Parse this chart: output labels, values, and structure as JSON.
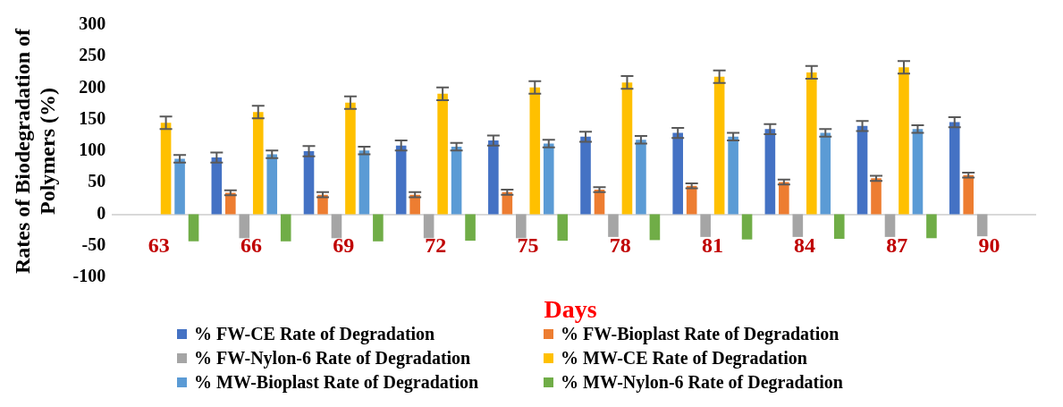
{
  "chart_data": {
    "type": "bar",
    "xlabel": "Days",
    "ylabel": "Rates of Biodegradation of Polymers (%)",
    "categories": [
      "63",
      "66",
      "69",
      "72",
      "75",
      "78",
      "81",
      "84",
      "87",
      "90"
    ],
    "ylim": [
      -100,
      300
    ],
    "yticks": [
      -100,
      -50,
      0,
      50,
      100,
      150,
      200,
      250,
      300
    ],
    "grid": false,
    "legend": "bottom",
    "series": [
      {
        "name": "% FW-CE Rate of Degradation",
        "color": "#4472c4",
        "values": [
          null,
          90,
          100,
          109,
          117,
          123,
          129,
          135,
          140,
          146
        ],
        "errors": [
          null,
          8,
          8,
          8,
          8,
          8,
          8,
          8,
          8,
          8
        ]
      },
      {
        "name": "% FW-Bioplast Rate of Degradation",
        "color": "#ed7d31",
        "values": [
          null,
          34,
          31,
          31,
          35,
          39,
          45,
          51,
          57,
          62
        ],
        "errors": [
          null,
          4,
          4,
          4,
          4,
          4,
          4,
          4,
          4,
          4
        ]
      },
      {
        "name": "% FW-Nylon-6 Rate of Degradation",
        "color": "#a5a5a5",
        "values": [
          null,
          -38,
          -38,
          -38,
          -38,
          -36,
          -36,
          -36,
          -36,
          -35
        ]
      },
      {
        "name": "% MW-CE Rate of Degradation",
        "color": "#ffc000",
        "values": [
          145,
          162,
          177,
          191,
          201,
          209,
          218,
          225,
          233,
          null
        ],
        "errors": [
          10,
          10,
          10,
          10,
          10,
          10,
          10,
          10,
          10,
          null
        ]
      },
      {
        "name": "% MW-Bioplast Rate of Degradation",
        "color": "#5b9bd5",
        "values": [
          88,
          95,
          101,
          107,
          112,
          118,
          123,
          129,
          135,
          null
        ],
        "errors": [
          6,
          6,
          6,
          6,
          6,
          6,
          6,
          6,
          6,
          null
        ]
      },
      {
        "name": "% MW-Nylon-6 Rate of Degradation",
        "color": "#70ad47",
        "values": [
          -43,
          -43,
          -43,
          -42,
          -42,
          -41,
          -40,
          -39,
          -38,
          null
        ]
      }
    ]
  }
}
